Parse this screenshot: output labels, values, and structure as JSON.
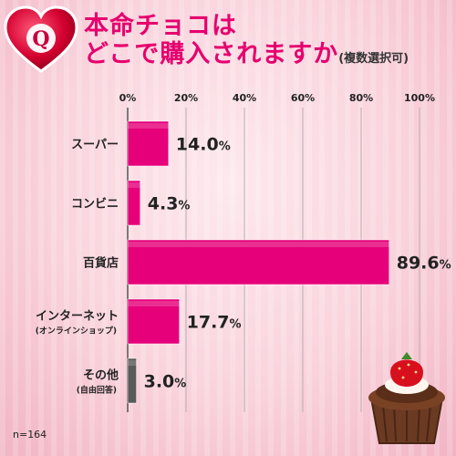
{
  "badge": {
    "letter": "Q",
    "color": "#c8003c"
  },
  "title": {
    "line1": "本命チョコは",
    "line2": "どこで購入されますか",
    "note": "(複数選択可)"
  },
  "sample_size": "n=164",
  "colors": {
    "accent": "#e6006e",
    "bar": "#e6007a",
    "bar_other": "#5a5a5a"
  },
  "chart_data": {
    "type": "bar",
    "orientation": "horizontal",
    "categories": [
      {
        "label": "スーパー",
        "sublabel": ""
      },
      {
        "label": "コンビニ",
        "sublabel": ""
      },
      {
        "label": "百貨店",
        "sublabel": ""
      },
      {
        "label": "インターネット",
        "sublabel": "(オンラインショップ)"
      },
      {
        "label": "その他",
        "sublabel": "(自由回答)"
      }
    ],
    "values": [
      14.0,
      4.3,
      89.6,
      17.7,
      3.0
    ],
    "value_labels": [
      "14.0",
      "4.3",
      "89.6",
      "17.7",
      "3.0"
    ],
    "value_suffix": "%",
    "xlim": [
      0,
      100
    ],
    "ticks": [
      "0%",
      "20%",
      "40%",
      "60%",
      "80%",
      "100%"
    ],
    "tick_values": [
      0,
      20,
      40,
      60,
      80,
      100
    ],
    "grid": true
  }
}
